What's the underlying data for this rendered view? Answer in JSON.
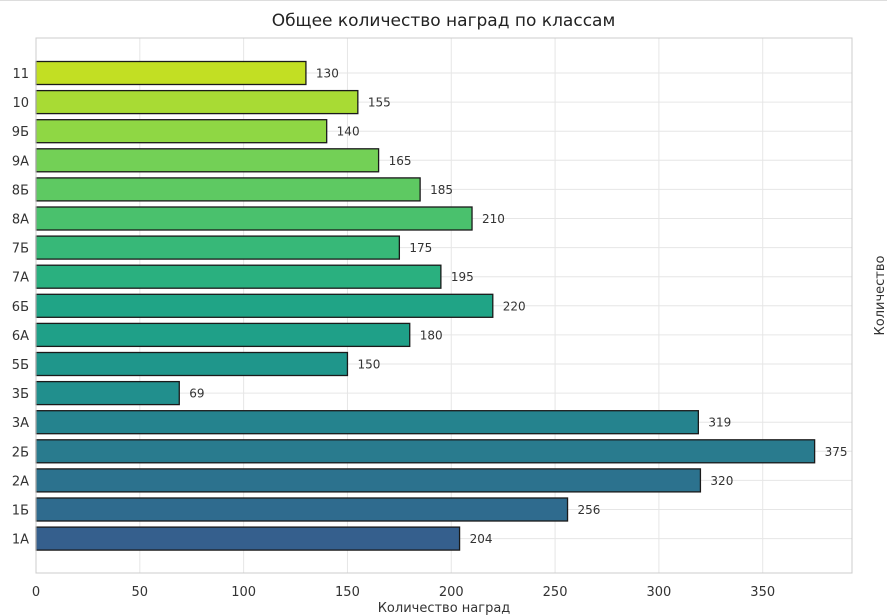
{
  "chart_data": {
    "type": "bar",
    "orientation": "horizontal",
    "title": "Общее количество наград по классам",
    "xlabel": "Количество наград",
    "ylabel_right": "Количество",
    "categories": [
      "1А",
      "1Б",
      "2А",
      "2Б",
      "3А",
      "3Б",
      "5Б",
      "6А",
      "6Б",
      "7А",
      "7Б",
      "8А",
      "8Б",
      "9А",
      "9Б",
      "10",
      "11"
    ],
    "values": [
      204,
      256,
      320,
      375,
      319,
      69,
      150,
      180,
      220,
      195,
      175,
      210,
      185,
      165,
      140,
      155,
      130
    ],
    "data_labels": [
      "204",
      "256",
      "320",
      "375",
      "319",
      "69",
      "150",
      "180",
      "220",
      "195",
      "175",
      "210",
      "185",
      "165",
      "140",
      "155",
      "130"
    ],
    "xlim": [
      0,
      393
    ],
    "xticks": [
      0,
      50,
      100,
      150,
      200,
      250,
      300,
      350
    ],
    "xtick_labels": [
      "0",
      "50",
      "100",
      "150",
      "200",
      "250",
      "300",
      "350"
    ],
    "colors": [
      "#355f8d",
      "#2f6b8e",
      "#2c728e",
      "#297b8e",
      "#25838e",
      "#218f8d",
      "#1f968b",
      "#1fa088",
      "#20a486",
      "#2ab07f",
      "#37b878",
      "#4ac16d",
      "#5ec962",
      "#73d056",
      "#8fd744",
      "#a8db34",
      "#c2df23"
    ],
    "grid": true,
    "legend": "none"
  }
}
